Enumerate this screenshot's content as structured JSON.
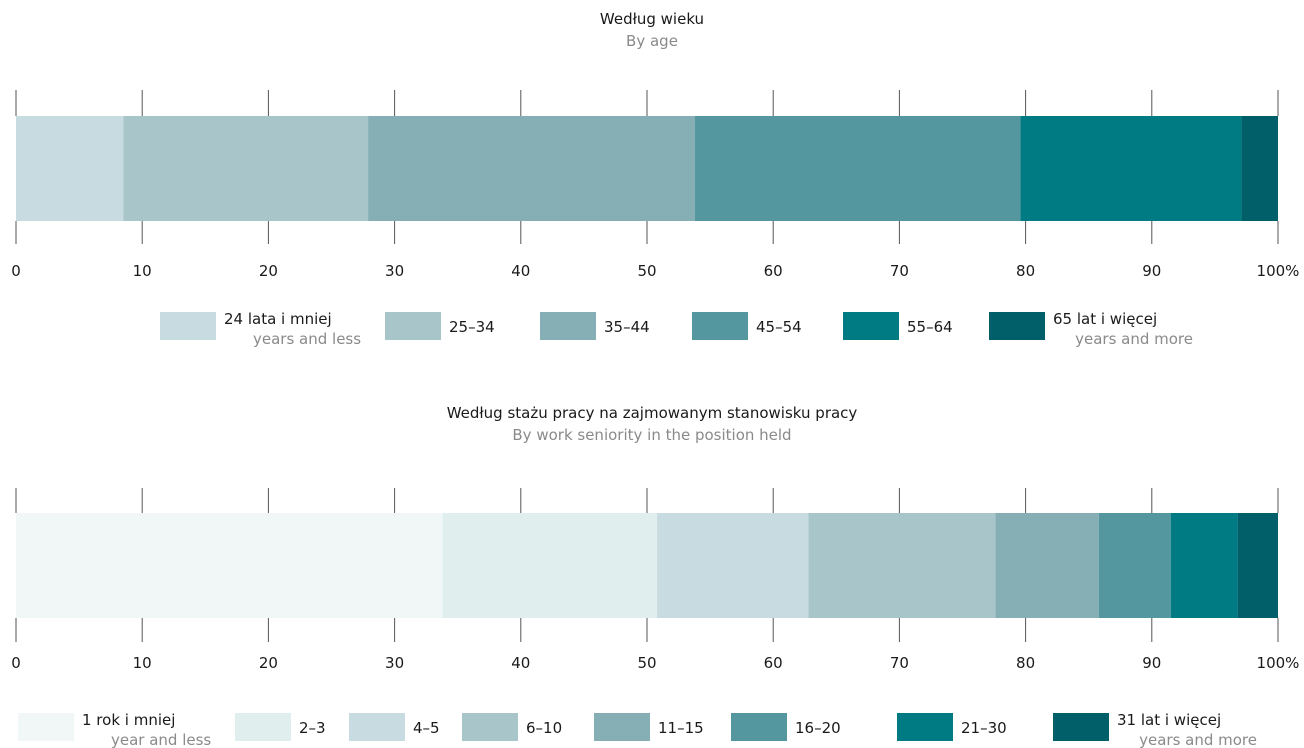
{
  "chart_data": [
    {
      "type": "bar",
      "orientation": "horizontal-stacked-100",
      "title": "Według wieku",
      "subtitle": "By age",
      "xlim": [
        0,
        100
      ],
      "x_ticks": [
        "0",
        "10",
        "20",
        "30",
        "40",
        "50",
        "60",
        "70",
        "80",
        "90",
        "100%"
      ],
      "series": [
        {
          "name": "24 lata i mniej",
          "sub": "years and less",
          "value": 8.5,
          "color": "#c8dbe0"
        },
        {
          "name": "25–34",
          "sub": "",
          "value": 19.4,
          "color": "#a8c5ca"
        },
        {
          "name": "35–44",
          "sub": "",
          "value": 25.9,
          "color": "#85aeb5"
        },
        {
          "name": "45–54",
          "sub": "",
          "value": 25.8,
          "color": "#55979f"
        },
        {
          "name": "55–64",
          "sub": "",
          "value": 17.5,
          "color": "#007a83"
        },
        {
          "name": "65 lat i więcej",
          "sub": "years and more",
          "value": 2.9,
          "color": "#005f69"
        }
      ]
    },
    {
      "type": "bar",
      "orientation": "horizontal-stacked-100",
      "title": "Według stażu pracy na zajmowanym stanowisku pracy",
      "subtitle": "By work seniority in the position held",
      "xlim": [
        0,
        100
      ],
      "x_ticks": [
        "0",
        "10",
        "20",
        "30",
        "40",
        "50",
        "60",
        "70",
        "80",
        "90",
        "100%"
      ],
      "series": [
        {
          "name": "1 rok i mniej",
          "sub": "year and less",
          "value": 33.8,
          "color": "#f1f7f6"
        },
        {
          "name": "2–3",
          "sub": "",
          "value": 17.0,
          "color": "#e0efed"
        },
        {
          "name": "4–5",
          "sub": "",
          "value": 12.0,
          "color": "#c8dbe0"
        },
        {
          "name": "6–10",
          "sub": "",
          "value": 14.8,
          "color": "#a8c5ca"
        },
        {
          "name": "11–15",
          "sub": "",
          "value": 8.2,
          "color": "#85aeb5"
        },
        {
          "name": "16–20",
          "sub": "",
          "value": 5.7,
          "color": "#55979f"
        },
        {
          "name": "21–30",
          "sub": "",
          "value": 5.3,
          "color": "#007a83"
        },
        {
          "name": "31 lat i więcej",
          "sub": "years and more",
          "value": 3.2,
          "color": "#005f69"
        }
      ]
    }
  ]
}
